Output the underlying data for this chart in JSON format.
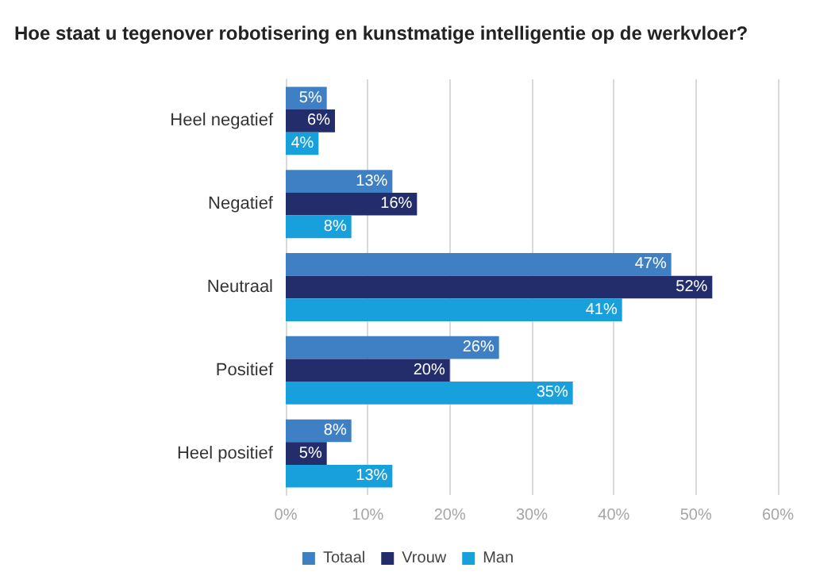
{
  "chart_data": {
    "type": "bar",
    "orientation": "horizontal",
    "title": "Hoe staat u tegenover robotisering en kunstmatige intelligentie op de werkvloer?",
    "categories": [
      "Heel negatief",
      "Negatief",
      "Neutraal",
      "Positief",
      "Heel positief"
    ],
    "series": [
      {
        "name": "Totaal",
        "color": "#3f7fc4",
        "values": [
          5,
          13,
          47,
          26,
          8
        ],
        "value_labels": [
          "5%",
          "13%",
          "47%",
          "26%",
          "8%"
        ]
      },
      {
        "name": "Vrouw",
        "color": "#232d6b",
        "values": [
          6,
          16,
          52,
          20,
          5
        ],
        "value_labels": [
          "6%",
          "16%",
          "52%",
          "20%",
          "5%"
        ]
      },
      {
        "name": "Man",
        "color": "#17a0dc",
        "values": [
          4,
          8,
          41,
          35,
          13
        ],
        "value_labels": [
          "4%",
          "8%",
          "41%",
          "35%",
          "13%"
        ]
      }
    ],
    "xlim": [
      0,
      60
    ],
    "xticks": [
      {
        "value": 0,
        "label": "0%"
      },
      {
        "value": 10,
        "label": "10%"
      },
      {
        "value": 20,
        "label": "20%"
      },
      {
        "value": 30,
        "label": "30%"
      },
      {
        "value": 40,
        "label": "40%"
      },
      {
        "value": 50,
        "label": "50%"
      },
      {
        "value": 60,
        "label": "60%"
      }
    ],
    "grid": "x",
    "legend": "bottom"
  }
}
